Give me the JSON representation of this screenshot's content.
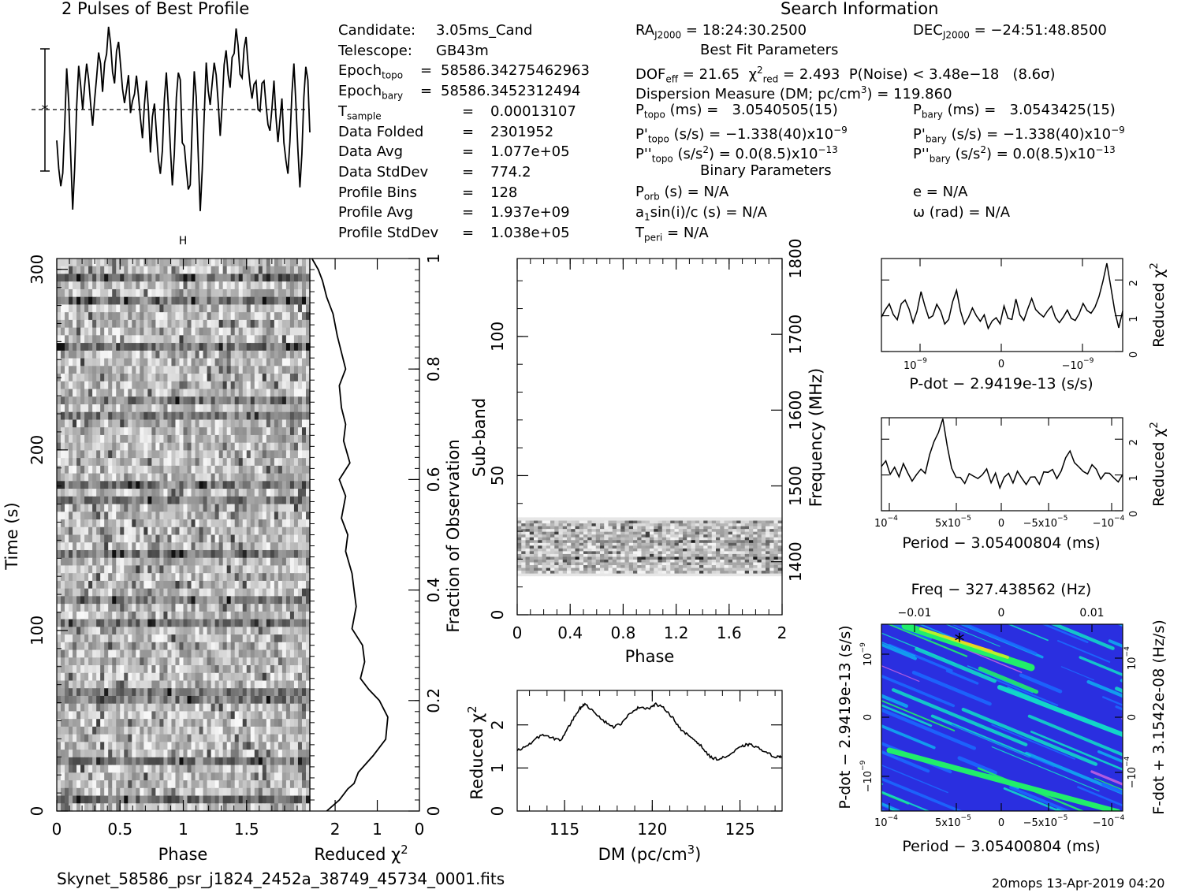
{
  "header": {
    "left_title": "2 Pulses of Best Profile",
    "right_title": "Search Information",
    "filename": "Skynet_58586_psr_j1824_2452a_38749_45734_0001.fits",
    "footer": "20mops 13-Apr-2019 04:20"
  },
  "info": {
    "col1": [
      {
        "k": "Candidate:",
        "v": "3.05ms_Cand"
      },
      {
        "k": "Telescope:",
        "v": "GB43m"
      },
      {
        "k": "Epoch",
        "sub": "topo",
        "eq": "=",
        "v": "58586.34275462963"
      },
      {
        "k": "Epoch",
        "sub": "bary",
        "eq": "=",
        "v": "58586.3452312494"
      },
      {
        "k": "T",
        "sub": "sample",
        "eq": "=",
        "v": "0.00013107"
      },
      {
        "k": "Data Folded",
        "eq": "=",
        "v": "2301952"
      },
      {
        "k": "Data Avg",
        "eq": "=",
        "v": "1.077e+05"
      },
      {
        "k": "Data StdDev",
        "eq": "=",
        "v": "774.2"
      },
      {
        "k": "Profile Bins",
        "eq": "=",
        "v": "128"
      },
      {
        "k": "Profile Avg",
        "eq": "=",
        "v": "1.937e+09"
      },
      {
        "k": "Profile StdDev",
        "eq": "=",
        "v": "1.038e+05"
      }
    ],
    "ra": "RA",
    "ra_sub": "J2000",
    "ra_value": "= 18:24:30.2500",
    "dec": "DEC",
    "dec_sub": "J2000",
    "dec_value": "= −24:51:48.8500",
    "best_fit": "Best Fit Parameters",
    "dof": "DOF",
    "dof_sub": "eff",
    "dof_value": "= 21.65",
    "chi": "χ",
    "chi_sup": "2",
    "chi_sub": "red",
    "chi_value": "= 2.493",
    "pnoise": "P(Noise) < 3.48e−18   (8.6σ)",
    "dm": "Dispersion Measure (DM; pc/cm",
    "dm_sup": "3",
    "dm_value": ") = 119.860",
    "ptopo": "P",
    "ptopo_sub": "topo",
    "ptopo_value": "(ms) =   3.0540505(15)",
    "pbary": "P",
    "pbary_sub": "bary",
    "pbary_value": "(ms) =   3.0543425(15)",
    "pdtopo": "P'",
    "pdtopo_sub": "topo",
    "pdtopo_value": "(s/s) = −1.338(40)x10",
    "pdtopo_exp": "−9",
    "pdbary": "P'",
    "pdbary_sub": "bary",
    "pdbary_value": "(s/s) = −1.338(40)x10",
    "pdbary_exp": "−9",
    "pddtopo": "P''",
    "pddtopo_sub": "topo",
    "pddtopo_value": "(s/s",
    "pddtopo_sq": "2",
    "pddtopo_rest": ") = 0.0(8.5)x10",
    "pddtopo_exp": "−13",
    "pddbary": "P''",
    "pddbary_sub": "bary",
    "pddbary_value": "(s/s",
    "pddbary_sq": "2",
    "pddbary_rest": ") = 0.0(8.5)x10",
    "pddbary_exp": "−13",
    "binary": "Binary Parameters",
    "porb": "P",
    "porb_sub": "orb",
    "porb_value": "(s) = N/A",
    "e": "e = N/A",
    "a1": "a",
    "a1_sub": "1",
    "a1_value": "sin(i)/c (s) = N/A",
    "omega": "ω (rad) = N/A",
    "tperi": "T",
    "tperi_sub": "peri",
    "tperi_value": "= N/A"
  },
  "chart_data": [
    {
      "type": "line",
      "name": "profile",
      "title": "2 Pulses of Best Profile",
      "x": "phase 0-2",
      "values": [
        0.42,
        0.3,
        0.18,
        0.22,
        0.5,
        0.8,
        0.66,
        0.32,
        0.05,
        0.26,
        0.6,
        0.84,
        0.7,
        0.62,
        0.72,
        0.86,
        0.78,
        0.6,
        0.48,
        0.62,
        0.8,
        0.9,
        0.82,
        0.7,
        0.86,
        0.9,
        1.0,
        0.92,
        0.8,
        0.74,
        0.88,
        0.98,
        0.86,
        0.72,
        0.64,
        0.7,
        0.74,
        0.58,
        0.62,
        0.7,
        0.78,
        0.64,
        0.52,
        0.46,
        0.62,
        0.72,
        0.58,
        0.4,
        0.55,
        0.66,
        0.46,
        0.34,
        0.24,
        0.4,
        0.66,
        0.8,
        0.62,
        0.36,
        0.2,
        0.4,
        0.68,
        0.82,
        0.74,
        0.46,
        0.42,
        0.3,
        0.18,
        0.22,
        0.5,
        0.8,
        0.66,
        0.32,
        0.05,
        0.26,
        0.6,
        0.84,
        0.7,
        0.62,
        0.72,
        0.86,
        0.78,
        0.6,
        0.48,
        0.62,
        0.8,
        0.9,
        0.82,
        0.7,
        0.86,
        0.9,
        1.0,
        0.92,
        0.8,
        0.74,
        0.88,
        0.98,
        0.86,
        0.72,
        0.64,
        0.7,
        0.74,
        0.58,
        0.62,
        0.7,
        0.78,
        0.64,
        0.52,
        0.46,
        0.62,
        0.72,
        0.58,
        0.4,
        0.55,
        0.66,
        0.46,
        0.34,
        0.24,
        0.4,
        0.66,
        0.8,
        0.62,
        0.36,
        0.2,
        0.4,
        0.68,
        0.82,
        0.74,
        0.46
      ]
    },
    {
      "type": "heatmap",
      "name": "time-phase",
      "xlabel": "Phase",
      "ylabel": "Time (s)",
      "xticks": [
        "0",
        "0.5",
        "1",
        "1.5"
      ],
      "yticks": [
        "0",
        "100",
        "200",
        "300"
      ],
      "xlim": [
        0,
        2
      ],
      "ylim": [
        0,
        306
      ]
    },
    {
      "type": "line",
      "name": "time-chi2",
      "xlabel": "Reduced χ",
      "xlabel_sup": "2",
      "ylabel": "Fraction of Observation",
      "xticks": [
        "2",
        "1",
        "0"
      ],
      "yticks": [
        "0",
        "0.2",
        "0.4",
        "0.6",
        "0.8",
        "1"
      ],
      "x": [
        2.2,
        1.9,
        1.7,
        1.55,
        1.45,
        1.1,
        0.8,
        0.75,
        0.95,
        1.2,
        1.4,
        1.3,
        1.35,
        1.6,
        1.5,
        1.55,
        1.6,
        1.75,
        1.7,
        1.85,
        1.75,
        1.9,
        1.65,
        1.8,
        1.75,
        1.85,
        1.9,
        1.75,
        1.85,
        1.95,
        2.0,
        2.05,
        2.2,
        2.3,
        2.4,
        2.55
      ],
      "y": [
        0,
        0.02,
        0.04,
        0.05,
        0.07,
        0.1,
        0.13,
        0.17,
        0.2,
        0.22,
        0.24,
        0.27,
        0.3,
        0.33,
        0.37,
        0.4,
        0.43,
        0.47,
        0.5,
        0.53,
        0.57,
        0.6,
        0.63,
        0.67,
        0.7,
        0.73,
        0.77,
        0.8,
        0.83,
        0.86,
        0.88,
        0.9,
        0.93,
        0.96,
        0.98,
        1.0
      ]
    },
    {
      "type": "heatmap",
      "name": "subband-phase",
      "xlabel": "Phase",
      "ylabel": "Sub-band",
      "y2label": "Frequency (MHz)",
      "xticks": [
        "0",
        "0.4",
        "0.8",
        "1.2",
        "1.6",
        "2"
      ],
      "yticks": [
        "0",
        "50",
        "100"
      ],
      "y2ticks": [
        "1400",
        "1500",
        "1600",
        "1700",
        "1800"
      ],
      "xlim": [
        0,
        2
      ],
      "ylim": [
        0,
        128
      ],
      "band_rows": [
        14,
        35
      ]
    },
    {
      "type": "line",
      "name": "dm-chi2",
      "xlabel": "DM (pc/cm",
      "xlabel_sup": "3",
      "xlabel_end": ")",
      "ylabel": "Reduced χ",
      "ylabel_sup": "2",
      "xticks": [
        "115",
        "120",
        "125"
      ],
      "yticks": [
        "0",
        "1",
        "2"
      ],
      "xlim": [
        112.3,
        127.4
      ],
      "ylim": [
        0,
        2.8
      ],
      "x": [
        112.3,
        113.0,
        113.7,
        114.2,
        114.8,
        115.3,
        115.8,
        116.1,
        116.6,
        117.2,
        117.8,
        118.3,
        118.8,
        119.3,
        119.8,
        120.2,
        120.7,
        121.2,
        121.7,
        122.2,
        122.7,
        123.3,
        123.8,
        124.4,
        124.9,
        125.4,
        125.9,
        126.5,
        127.1,
        127.4
      ],
      "y": [
        1.4,
        1.55,
        1.78,
        1.7,
        1.65,
        2.0,
        2.35,
        2.48,
        2.35,
        2.1,
        1.95,
        2.05,
        2.3,
        2.42,
        2.38,
        2.48,
        2.38,
        2.15,
        1.85,
        1.72,
        1.55,
        1.25,
        1.2,
        1.3,
        1.45,
        1.55,
        1.5,
        1.35,
        1.25,
        1.28
      ]
    },
    {
      "type": "line",
      "name": "pdot-chi2",
      "xlabel": "P-dot − 2.9419e-13 (s/s)",
      "ylabel": "Reduced χ",
      "ylabel_sup": "2",
      "xtick_labels": [
        "10",
        "0",
        "−10"
      ],
      "xtick_exp": "−9",
      "yticks": [
        "0",
        "1",
        "2"
      ],
      "ylim": [
        0,
        2.6
      ],
      "values": [
        1.0,
        1.2,
        1.4,
        1.0,
        0.9,
        1.3,
        1.5,
        1.2,
        0.8,
        1.1,
        1.6,
        1.2,
        0.9,
        1.0,
        1.3,
        1.2,
        0.8,
        0.9,
        1.4,
        1.7,
        1.1,
        0.8,
        0.9,
        1.2,
        1.0,
        0.9,
        1.1,
        0.7,
        0.9,
        1.0,
        0.8,
        1.2,
        1.0,
        0.9,
        1.4,
        1.0,
        0.8,
        1.2,
        1.5,
        1.1,
        1.0,
        0.9,
        1.1,
        1.3,
        1.0,
        0.8,
        0.9,
        1.2,
        1.0,
        0.9,
        1.1,
        1.4,
        1.2,
        1.0,
        1.3,
        1.6,
        2.0,
        2.4,
        1.8,
        1.1,
        0.6,
        1.1
      ]
    },
    {
      "type": "line",
      "name": "period-chi2",
      "xlabel": "Period − 3.05400804 (ms)",
      "ylabel": "Reduced χ",
      "ylabel_sup": "2",
      "xtick_labels": [
        "10",
        "5x10",
        "0",
        "−5x10",
        "−10"
      ],
      "xtick_exps": [
        "−4",
        "−5",
        "",
        "−5",
        "−4"
      ],
      "yticks": [
        "0",
        "1",
        "2"
      ],
      "ylim": [
        0,
        2.6
      ],
      "values": [
        1.2,
        1.4,
        1.0,
        1.2,
        0.9,
        1.3,
        1.1,
        0.8,
        1.0,
        1.2,
        1.1,
        1.5,
        1.9,
        2.2,
        2.5,
        1.8,
        1.2,
        1.0,
        0.9,
        0.8,
        1.1,
        0.9,
        0.9,
        1.0,
        1.1,
        0.8,
        1.0,
        0.7,
        0.9,
        1.0,
        0.8,
        1.1,
        0.9,
        0.8,
        1.0,
        0.9,
        0.7,
        1.1,
        1.0,
        1.2,
        0.9,
        1.1,
        1.5,
        1.7,
        1.3,
        1.2,
        1.1,
        1.0,
        1.3,
        1.2,
        0.9,
        1.1,
        1.0,
        0.9,
        0.8,
        1.0
      ]
    },
    {
      "type": "heatmap",
      "name": "period-pdot-plane",
      "title": "Freq − 327.438562 (Hz)",
      "xlabel": "Period − 3.05400804 (ms)",
      "ylabel": "P-dot − 2.9419e-13 (s/s)",
      "y2label": "F-dot + 3.1542e-08 (Hz/s)",
      "top_ticks": [
        "−0.01",
        "0",
        "0.01"
      ],
      "xtick_labels": [
        "10",
        "5x10",
        "0",
        "−5x10",
        "−10"
      ],
      "xtick_exps": [
        "−4",
        "−5",
        "",
        "−5",
        "−4"
      ],
      "ytick_labels": [
        "10",
        "0",
        "−10"
      ],
      "ytick_exps": [
        "−9",
        "",
        "−9"
      ],
      "y2tick_labels": [
        "−10",
        "0",
        "10"
      ],
      "y2tick_exps": [
        "−4",
        "",
        "−4"
      ],
      "colors": [
        "#2a2fe0",
        "#1b68ff",
        "#10a8f0",
        "#12d6c8",
        "#21ee6a",
        "#b8f02a",
        "#f0d020",
        "#c060e0"
      ]
    }
  ]
}
